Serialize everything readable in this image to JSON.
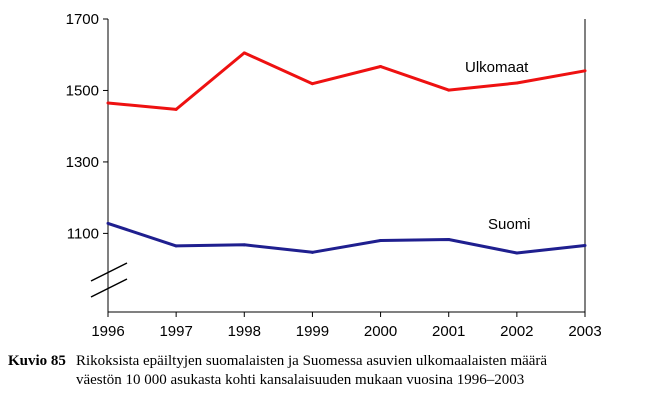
{
  "chart_data": {
    "type": "line",
    "title": "",
    "xlabel": "",
    "ylabel": "",
    "categories": [
      "1996",
      "1997",
      "1998",
      "1999",
      "2000",
      "2001",
      "2002",
      "2003"
    ],
    "y_ticks": [
      "1700",
      "1500",
      "1300",
      "1100"
    ],
    "ylim": [
      880,
      1700
    ],
    "axis_break": true,
    "grid": false,
    "series": [
      {
        "name": "Ulkomaat",
        "color": "#ee1111",
        "values": [
          1465,
          1447,
          1605,
          1519,
          1567,
          1501,
          1521,
          1555
        ]
      },
      {
        "name": "Suomi",
        "color": "#1f1f8f",
        "values": [
          1128,
          1065,
          1068,
          1047,
          1080,
          1083,
          1045,
          1066
        ]
      }
    ]
  },
  "caption": {
    "label": "Kuvio 85",
    "line1": "Rikoksista epäiltyjen suomalaisten ja Suomessa asuvien ulkomaalaisten määrä",
    "line2": "väestön 10 000 asukasta kohti kansalaisuuden mukaan vuosina 1996–2003"
  }
}
